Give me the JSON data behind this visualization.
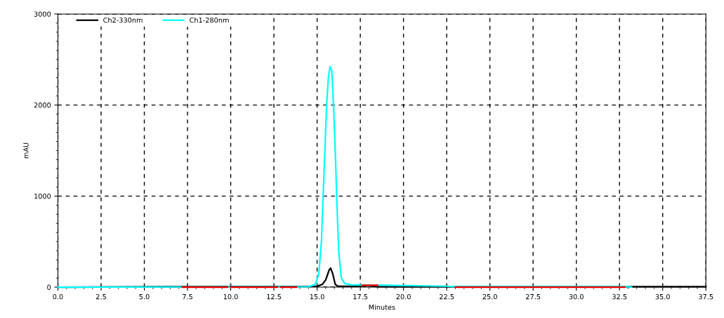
{
  "chart_data": {
    "type": "line",
    "xlabel": "Minutes",
    "ylabel": "mAU",
    "xlim": [
      0,
      37.5
    ],
    "ylim": [
      0,
      3000
    ],
    "xticks": [
      {
        "value": 0,
        "label": "0.0"
      },
      {
        "value": 2.5,
        "label": "2.5"
      },
      {
        "value": 5,
        "label": "5.0"
      },
      {
        "value": 7.5,
        "label": "7.5"
      },
      {
        "value": 10,
        "label": "10.0"
      },
      {
        "value": 12.5,
        "label": "12.5"
      },
      {
        "value": 15,
        "label": "15.0"
      },
      {
        "value": 17.5,
        "label": "17.5"
      },
      {
        "value": 20,
        "label": "20.0"
      },
      {
        "value": 22.5,
        "label": "22.5"
      },
      {
        "value": 25,
        "label": "25.0"
      },
      {
        "value": 27.5,
        "label": "27.5"
      },
      {
        "value": 30,
        "label": "30.0"
      },
      {
        "value": 32.5,
        "label": "32.5"
      },
      {
        "value": 35,
        "label": "35.0"
      },
      {
        "value": 37.5,
        "label": "37.5"
      }
    ],
    "yticks": [
      0,
      1000,
      2000,
      3000
    ],
    "grid": true,
    "legend": "top left",
    "line_style": "solid",
    "marker": "none",
    "series": [
      {
        "name": "Ch2-330nm",
        "color": "#000000",
        "x": [
          0,
          15,
          15.3,
          15.5,
          15.7,
          15.78,
          15.9,
          16.05,
          16.2,
          17,
          17.5,
          18,
          18.5,
          37.5
        ],
        "values": [
          0,
          10,
          30,
          80,
          190,
          210,
          150,
          30,
          10,
          10,
          15,
          15,
          5,
          5
        ]
      },
      {
        "name": "Ch1-280nm",
        "color": "#00ffff",
        "x": [
          0,
          14.5,
          14.9,
          15.1,
          15.25,
          15.35,
          15.45,
          15.55,
          15.65,
          15.75,
          15.85,
          15.95,
          16.05,
          16.15,
          16.25,
          16.4,
          16.6,
          17,
          19,
          22.5,
          23,
          33,
          33.2
        ],
        "values": [
          0,
          5,
          30,
          150,
          500,
          1000,
          1500,
          2000,
          2300,
          2420,
          2380,
          2000,
          1500,
          900,
          400,
          100,
          40,
          25,
          20,
          10,
          5,
          5,
          0
        ]
      },
      {
        "color": "#ff0000",
        "x": [
          7.2,
          9.8,
          9.9,
          10,
          12.7,
          12.8,
          12.9,
          13.8,
          13.9,
          17.6,
          18.5,
          18.6,
          23,
          32.8
        ],
        "values": [
          0,
          0,
          null,
          0,
          0,
          null,
          0,
          0,
          null,
          20,
          20,
          null,
          0,
          0
        ]
      }
    ]
  }
}
